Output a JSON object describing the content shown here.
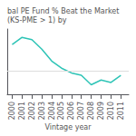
{
  "chart_data": {
    "type": "line",
    "title": "bal PE Fund % Beat the Market (KS-PME > 1) by",
    "xlabel": "Vintage year",
    "x": [
      2000,
      2001,
      2002,
      2003,
      2004,
      2005,
      2006,
      2007,
      2008,
      2009,
      2010,
      2011
    ],
    "values": [
      72,
      78,
      76,
      68,
      58,
      52,
      48,
      46,
      38,
      42,
      40,
      46
    ],
    "color": "#2ec4b6",
    "xlim": [
      1999.5,
      2011.8
    ],
    "xticks": [
      2000,
      2001,
      2002,
      2003,
      2004,
      2005,
      2006,
      2007,
      2008,
      2009,
      2010,
      2011
    ],
    "ylim": [
      30,
      85
    ],
    "hline": 50,
    "grid": false,
    "tick_labels": "x"
  }
}
